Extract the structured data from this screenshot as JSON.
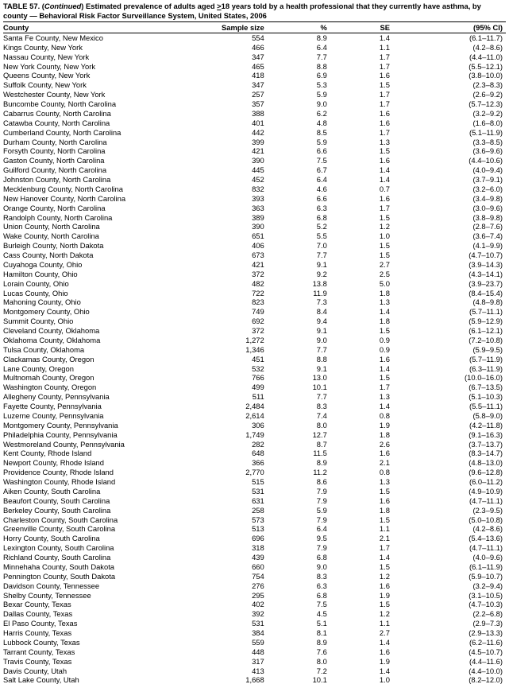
{
  "title_prefix": "TABLE 57. (",
  "title_cont": "Continued",
  "title_mid1": ") Estimated prevalence of adults aged ",
  "title_ge": ">",
  "title_mid2": "18 years told by a health professional that they currently have asthma, by county — Behavioral Risk Factor Surveillance System, United States, 2006",
  "headers": {
    "county": "County",
    "sample_size": "Sample size",
    "pct": "%",
    "se": "SE",
    "ci": "(95% CI)"
  },
  "rows": [
    {
      "county": "Santa Fe County, New Mexico",
      "ss": "554",
      "pct": "8.9",
      "se": "1.4",
      "ci": "(6.1–11.7)"
    },
    {
      "county": "Kings County, New York",
      "ss": "466",
      "pct": "6.4",
      "se": "1.1",
      "ci": "(4.2–8.6)"
    },
    {
      "county": "Nassau County, New York",
      "ss": "347",
      "pct": "7.7",
      "se": "1.7",
      "ci": "(4.4–11.0)"
    },
    {
      "county": "New York County, New York",
      "ss": "465",
      "pct": "8.8",
      "se": "1.7",
      "ci": "(5.5–12.1)"
    },
    {
      "county": "Queens County, New York",
      "ss": "418",
      "pct": "6.9",
      "se": "1.6",
      "ci": "(3.8–10.0)"
    },
    {
      "county": "Suffolk County, New York",
      "ss": "347",
      "pct": "5.3",
      "se": "1.5",
      "ci": "(2.3–8.3)"
    },
    {
      "county": "Westchester County, New York",
      "ss": "257",
      "pct": "5.9",
      "se": "1.7",
      "ci": "(2.6–9.2)"
    },
    {
      "county": "Buncombe County, North Carolina",
      "ss": "357",
      "pct": "9.0",
      "se": "1.7",
      "ci": "(5.7–12.3)"
    },
    {
      "county": "Cabarrus County, North Carolina",
      "ss": "388",
      "pct": "6.2",
      "se": "1.6",
      "ci": "(3.2–9.2)"
    },
    {
      "county": "Catawba County, North Carolina",
      "ss": "401",
      "pct": "4.8",
      "se": "1.6",
      "ci": "(1.6–8.0)"
    },
    {
      "county": "Cumberland County, North Carolina",
      "ss": "442",
      "pct": "8.5",
      "se": "1.7",
      "ci": "(5.1–11.9)"
    },
    {
      "county": "Durham County, North Carolina",
      "ss": "399",
      "pct": "5.9",
      "se": "1.3",
      "ci": "(3.3–8.5)"
    },
    {
      "county": "Forsyth County, North Carolina",
      "ss": "421",
      "pct": "6.6",
      "se": "1.5",
      "ci": "(3.6–9.6)"
    },
    {
      "county": "Gaston County, North Carolina",
      "ss": "390",
      "pct": "7.5",
      "se": "1.6",
      "ci": "(4.4–10.6)"
    },
    {
      "county": "Guilford County, North Carolina",
      "ss": "445",
      "pct": "6.7",
      "se": "1.4",
      "ci": "(4.0–9.4)"
    },
    {
      "county": "Johnston County, North Carolina",
      "ss": "452",
      "pct": "6.4",
      "se": "1.4",
      "ci": "(3.7–9.1)"
    },
    {
      "county": "Mecklenburg County, North Carolina",
      "ss": "832",
      "pct": "4.6",
      "se": "0.7",
      "ci": "(3.2–6.0)"
    },
    {
      "county": "New Hanover County, North Carolina",
      "ss": "393",
      "pct": "6.6",
      "se": "1.6",
      "ci": "(3.4–9.8)"
    },
    {
      "county": "Orange County, North Carolina",
      "ss": "363",
      "pct": "6.3",
      "se": "1.7",
      "ci": "(3.0–9.6)"
    },
    {
      "county": "Randolph County, North Carolina",
      "ss": "389",
      "pct": "6.8",
      "se": "1.5",
      "ci": "(3.8–9.8)"
    },
    {
      "county": "Union County, North Carolina",
      "ss": "390",
      "pct": "5.2",
      "se": "1.2",
      "ci": "(2.8–7.6)"
    },
    {
      "county": "Wake County, North Carolina",
      "ss": "651",
      "pct": "5.5",
      "se": "1.0",
      "ci": "(3.6–7.4)"
    },
    {
      "county": "Burleigh County, North Dakota",
      "ss": "406",
      "pct": "7.0",
      "se": "1.5",
      "ci": "(4.1–9.9)"
    },
    {
      "county": "Cass County, North Dakota",
      "ss": "673",
      "pct": "7.7",
      "se": "1.5",
      "ci": "(4.7–10.7)"
    },
    {
      "county": "Cuyahoga County, Ohio",
      "ss": "421",
      "pct": "9.1",
      "se": "2.7",
      "ci": "(3.9–14.3)"
    },
    {
      "county": "Hamilton County, Ohio",
      "ss": "372",
      "pct": "9.2",
      "se": "2.5",
      "ci": "(4.3–14.1)"
    },
    {
      "county": "Lorain County, Ohio",
      "ss": "482",
      "pct": "13.8",
      "se": "5.0",
      "ci": "(3.9–23.7)"
    },
    {
      "county": "Lucas County, Ohio",
      "ss": "722",
      "pct": "11.9",
      "se": "1.8",
      "ci": "(8.4–15.4)"
    },
    {
      "county": "Mahoning County, Ohio",
      "ss": "823",
      "pct": "7.3",
      "se": "1.3",
      "ci": "(4.8–9.8)"
    },
    {
      "county": "Montgomery County, Ohio",
      "ss": "749",
      "pct": "8.4",
      "se": "1.4",
      "ci": "(5.7–11.1)"
    },
    {
      "county": "Summit County, Ohio",
      "ss": "692",
      "pct": "9.4",
      "se": "1.8",
      "ci": "(5.9–12.9)"
    },
    {
      "county": "Cleveland County, Oklahoma",
      "ss": "372",
      "pct": "9.1",
      "se": "1.5",
      "ci": "(6.1–12.1)"
    },
    {
      "county": "Oklahoma County, Oklahoma",
      "ss": "1,272",
      "pct": "9.0",
      "se": "0.9",
      "ci": "(7.2–10.8)"
    },
    {
      "county": "Tulsa County, Oklahoma",
      "ss": "1,346",
      "pct": "7.7",
      "se": "0.9",
      "ci": "(5.9–9.5)"
    },
    {
      "county": "Clackamas County, Oregon",
      "ss": "451",
      "pct": "8.8",
      "se": "1.6",
      "ci": "(5.7–11.9)"
    },
    {
      "county": "Lane County, Oregon",
      "ss": "532",
      "pct": "9.1",
      "se": "1.4",
      "ci": "(6.3–11.9)"
    },
    {
      "county": "Multnomah County, Oregon",
      "ss": "766",
      "pct": "13.0",
      "se": "1.5",
      "ci": "(10.0–16.0)"
    },
    {
      "county": "Washington County, Oregon",
      "ss": "499",
      "pct": "10.1",
      "se": "1.7",
      "ci": "(6.7–13.5)"
    },
    {
      "county": "Allegheny County, Pennsylvania",
      "ss": "511",
      "pct": "7.7",
      "se": "1.3",
      "ci": "(5.1–10.3)"
    },
    {
      "county": "Fayette County, Pennsylvania",
      "ss": "2,484",
      "pct": "8.3",
      "se": "1.4",
      "ci": "(5.5–11.1)"
    },
    {
      "county": "Luzerne County, Pennsylvania",
      "ss": "2,614",
      "pct": "7.4",
      "se": "0.8",
      "ci": "(5.8–9.0)"
    },
    {
      "county": "Montgomery County, Pennsylvania",
      "ss": "306",
      "pct": "8.0",
      "se": "1.9",
      "ci": "(4.2–11.8)"
    },
    {
      "county": "Philadelphia County, Pennsylvania",
      "ss": "1,749",
      "pct": "12.7",
      "se": "1.8",
      "ci": "(9.1–16.3)"
    },
    {
      "county": "Westmoreland County, Pennsylvania",
      "ss": "282",
      "pct": "8.7",
      "se": "2.6",
      "ci": "(3.7–13.7)"
    },
    {
      "county": "Kent County, Rhode Island",
      "ss": "648",
      "pct": "11.5",
      "se": "1.6",
      "ci": "(8.3–14.7)"
    },
    {
      "county": "Newport County, Rhode Island",
      "ss": "366",
      "pct": "8.9",
      "se": "2.1",
      "ci": "(4.8–13.0)"
    },
    {
      "county": "Providence County, Rhode Island",
      "ss": "2,770",
      "pct": "11.2",
      "se": "0.8",
      "ci": "(9.6–12.8)"
    },
    {
      "county": "Washington County, Rhode Island",
      "ss": "515",
      "pct": "8.6",
      "se": "1.3",
      "ci": "(6.0–11.2)"
    },
    {
      "county": "Aiken County, South Carolina",
      "ss": "531",
      "pct": "7.9",
      "se": "1.5",
      "ci": "(4.9–10.9)"
    },
    {
      "county": "Beaufort County, South Carolina",
      "ss": "631",
      "pct": "7.9",
      "se": "1.6",
      "ci": "(4.7–11.1)"
    },
    {
      "county": "Berkeley County, South Carolina",
      "ss": "258",
      "pct": "5.9",
      "se": "1.8",
      "ci": "(2.3–9.5)"
    },
    {
      "county": "Charleston County, South Carolina",
      "ss": "573",
      "pct": "7.9",
      "se": "1.5",
      "ci": "(5.0–10.8)"
    },
    {
      "county": "Greenville County, South Carolina",
      "ss": "513",
      "pct": "6.4",
      "se": "1.1",
      "ci": "(4.2–8.6)"
    },
    {
      "county": "Horry County, South Carolina",
      "ss": "696",
      "pct": "9.5",
      "se": "2.1",
      "ci": "(5.4–13.6)"
    },
    {
      "county": "Lexington County, South Carolina",
      "ss": "318",
      "pct": "7.9",
      "se": "1.7",
      "ci": "(4.7–11.1)"
    },
    {
      "county": "Richland County, South Carolina",
      "ss": "439",
      "pct": "6.8",
      "se": "1.4",
      "ci": "(4.0–9.6)"
    },
    {
      "county": "Minnehaha County, South Dakota",
      "ss": "660",
      "pct": "9.0",
      "se": "1.5",
      "ci": "(6.1–11.9)"
    },
    {
      "county": "Pennington County, South Dakota",
      "ss": "754",
      "pct": "8.3",
      "se": "1.2",
      "ci": "(5.9–10.7)"
    },
    {
      "county": "Davidson County, Tennessee",
      "ss": "276",
      "pct": "6.3",
      "se": "1.6",
      "ci": "(3.2–9.4)"
    },
    {
      "county": "Shelby County, Tennessee",
      "ss": "295",
      "pct": "6.8",
      "se": "1.9",
      "ci": "(3.1–10.5)"
    },
    {
      "county": "Bexar County, Texas",
      "ss": "402",
      "pct": "7.5",
      "se": "1.5",
      "ci": "(4.7–10.3)"
    },
    {
      "county": "Dallas County, Texas",
      "ss": "392",
      "pct": "4.5",
      "se": "1.2",
      "ci": "(2.2–6.8)"
    },
    {
      "county": "El Paso County, Texas",
      "ss": "531",
      "pct": "5.1",
      "se": "1.1",
      "ci": "(2.9–7.3)"
    },
    {
      "county": "Harris County, Texas",
      "ss": "384",
      "pct": "8.1",
      "se": "2.7",
      "ci": "(2.9–13.3)"
    },
    {
      "county": "Lubbock County, Texas",
      "ss": "559",
      "pct": "8.9",
      "se": "1.4",
      "ci": "(6.2–11.6)"
    },
    {
      "county": "Tarrant County, Texas",
      "ss": "448",
      "pct": "7.6",
      "se": "1.6",
      "ci": "(4.5–10.7)"
    },
    {
      "county": "Travis County, Texas",
      "ss": "317",
      "pct": "8.0",
      "se": "1.9",
      "ci": "(4.4–11.6)"
    },
    {
      "county": "Davis County, Utah",
      "ss": "413",
      "pct": "7.2",
      "se": "1.4",
      "ci": "(4.4–10.0)"
    },
    {
      "county": "Salt Lake County, Utah",
      "ss": "1,668",
      "pct": "10.1",
      "se": "1.0",
      "ci": "(8.2–12.0)"
    }
  ]
}
